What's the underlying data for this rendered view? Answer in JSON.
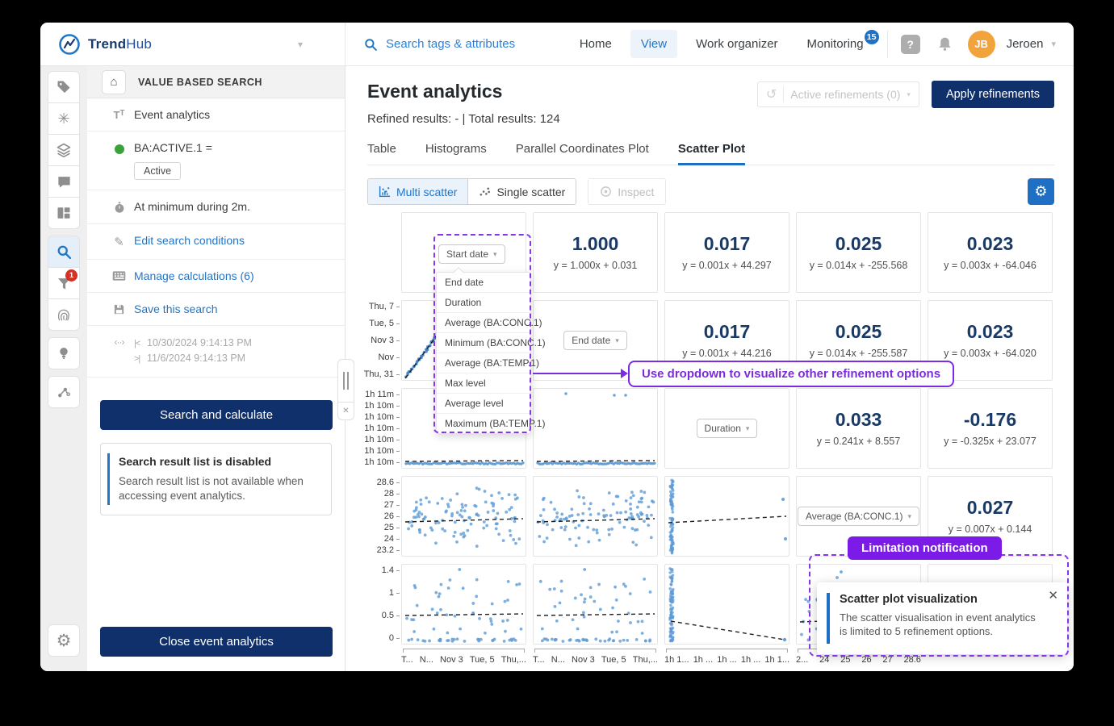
{
  "colors": {
    "navy": "#10306B",
    "blue": "#2176C7",
    "light_blue_bg": "#EAF2FC",
    "purple": "#7B2CE0",
    "pill_purple": "#7C1BE8",
    "dot_blue": "#5E9BD6",
    "badge_red": "#D93025",
    "avatar_orange": "#F2A33C",
    "green_dot": "#3BA13B"
  },
  "topnav": {
    "brand_bold": "Trend",
    "brand_light": "Hub",
    "search_placeholder": "Search tags & attributes",
    "nav_items": [
      "Home",
      "View",
      "Work organizer",
      "Monitoring"
    ],
    "active_item": "View",
    "monitoring_badge": "15",
    "user_initials": "JB",
    "user_name": "Jeroen"
  },
  "rail": {
    "groups": [
      [
        "tag",
        "formula",
        "layers",
        "comment",
        "dashboard"
      ],
      [
        "search",
        "filter",
        "fingerprint"
      ],
      [
        "bulb"
      ],
      [
        "connections"
      ]
    ],
    "bottom": "settings",
    "active": "search",
    "filter_badge": "1"
  },
  "panel": {
    "header": "VALUE BASED SEARCH",
    "search_name": "Event analytics",
    "condition_label": "BA:ACTIVE.1 =",
    "condition_value": "Active",
    "duration_condition": "At minimum during 2m.",
    "links": [
      "Edit search conditions",
      "Manage calculations (6)",
      "Save this search"
    ],
    "time_from_marker": "|<",
    "time_to_marker": ">|",
    "time_from": "10/30/2024 9:14:13 PM",
    "time_to": "11/6/2024 9:14:13 PM",
    "search_button": "Search and calculate",
    "notice_title": "Search result list is disabled",
    "notice_body": "Search result list is not available when accessing event analytics.",
    "close_button": "Close event analytics"
  },
  "main": {
    "title": "Event analytics",
    "subtitle": "Refined results: - | Total results: 124",
    "refinements_label": "Active refinements (0)",
    "apply_button": "Apply refinements",
    "tabs": [
      "Table",
      "Histograms",
      "Parallel Coordinates Plot",
      "Scatter Plot"
    ],
    "active_tab": "Scatter Plot",
    "toolbar": {
      "multi": "Multi scatter",
      "single": "Single scatter",
      "inspect": "Inspect"
    }
  },
  "matrix": {
    "menu_items": [
      "End date",
      "Duration",
      "Average (BA:CONC.1)",
      "Minimum (BA:CONC.1)",
      "Average (BA:TEMP.1)",
      "Max level",
      "Average level",
      "Maximum (BA:TEMP.1)"
    ],
    "rows": [
      [
        {
          "type": "dropdown",
          "label": "Start date",
          "open": true
        },
        {
          "type": "corr",
          "value": "1.000",
          "eq": "y = 1.000x + 0.031"
        },
        {
          "type": "corr",
          "value": "0.017",
          "eq": "y = 0.001x + 44.297"
        },
        {
          "type": "corr",
          "value": "0.025",
          "eq": "y = 0.014x + -255.568"
        },
        {
          "type": "corr",
          "value": "0.023",
          "eq": "y = 0.003x + -64.046"
        }
      ],
      [
        {
          "type": "diag",
          "seed": 2
        },
        {
          "type": "dropdown",
          "label": "End date"
        },
        {
          "type": "corr",
          "value": "0.017",
          "eq": "y = 0.001x + 44.216"
        },
        {
          "type": "corr",
          "value": "0.025",
          "eq": "y = 0.014x + -255.587"
        },
        {
          "type": "corr",
          "value": "0.023",
          "eq": "y = 0.003x + -64.020"
        }
      ],
      [
        {
          "type": "flat",
          "seed": 3
        },
        {
          "type": "flat",
          "seed": 4
        },
        {
          "type": "dropdown",
          "label": "Duration"
        },
        {
          "type": "corr",
          "value": "0.033",
          "eq": "y = 0.241x + 8.557"
        },
        {
          "type": "corr",
          "value": "-0.176",
          "eq": "y = -0.325x + 23.077"
        }
      ],
      [
        {
          "type": "cloud",
          "seed": 5
        },
        {
          "type": "cloud",
          "seed": 6
        },
        {
          "type": "strip",
          "seed": 7
        },
        {
          "type": "dropdown",
          "label": "Average (BA:CONC.1)"
        },
        {
          "type": "corr",
          "value": "0.027",
          "eq": "y = 0.007x + 0.144"
        }
      ],
      [
        {
          "type": "cloudb",
          "seed": 8
        },
        {
          "type": "cloudb",
          "seed": 9
        },
        {
          "type": "stripdesc",
          "seed": 10
        },
        {
          "type": "partial",
          "seed": 11
        },
        {
          "type": "empty"
        }
      ]
    ],
    "y_axis": {
      "row2": [
        "Thu, 7",
        "Tue, 5",
        "Nov 3",
        "Nov",
        "Thu, 31"
      ],
      "row3": [
        "1h 11m",
        "1h 10m",
        "1h 10m",
        "1h 10m",
        "1h 10m",
        "1h 10m",
        "1h 10m"
      ],
      "row4": [
        "28.6",
        "28",
        "27",
        "26",
        "25",
        "24",
        "23.2"
      ],
      "row5": [
        "1.4",
        "1",
        "0.5",
        "0"
      ]
    },
    "x_axis": {
      "col1": [
        "T...",
        "N...",
        "Nov 3",
        "Tue, 5",
        "Thu,..."
      ],
      "col2": [
        "T...",
        "N...",
        "Nov 3",
        "Tue, 5",
        "Thu,..."
      ],
      "col3": [
        "1h 1...",
        "1h ...",
        "1h ...",
        "1h ...",
        "1h 1..."
      ],
      "col4": [
        "2...",
        "24",
        "25",
        "26",
        "27",
        "28.6"
      ]
    }
  },
  "annotations": {
    "callout": "Use dropdown to visualize other refinement options",
    "pill": "Limitation notification",
    "notification_title": "Scatter plot visualization",
    "notification_body": "The scatter visualisation in event analytics is limited to 5 refinement options."
  }
}
